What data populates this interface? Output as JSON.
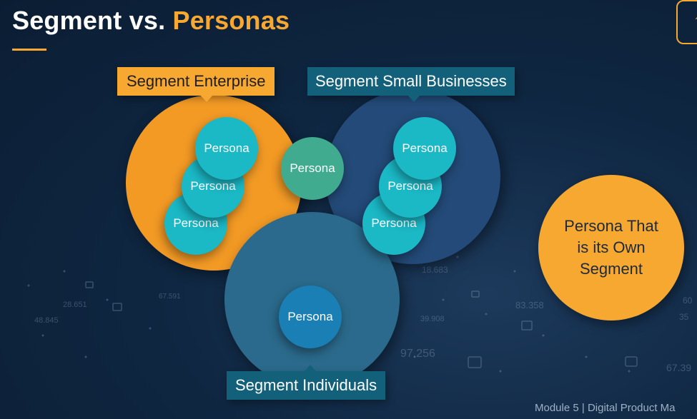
{
  "slide": {
    "title_part1": "Segment vs. ",
    "title_part2": "Personas",
    "accent_color": "#f7a830",
    "footer": "Module 5 | Digital Product Ma"
  },
  "segments": {
    "enterprise": {
      "label": "Segment Enterprise",
      "color": "#f39a25"
    },
    "small_businesses": {
      "label": "Segment Small Businesses",
      "color": "#234a78"
    },
    "individuals": {
      "label": "Segment Individuals",
      "color": "#2b6a8c"
    }
  },
  "personas": {
    "enterprise": [
      "Persona",
      "Persona",
      "Persona"
    ],
    "small_businesses": [
      "Persona",
      "Persona",
      "Persona"
    ],
    "overlap": "Persona",
    "individuals": "Persona"
  },
  "own_segment": {
    "text": "Persona That is its Own Segment"
  },
  "background_numbers": [
    "28.651",
    "48.845",
    "67.591",
    "18.683",
    "39.908",
    "83.358",
    "97.256",
    "67.39",
    "35",
    "60"
  ]
}
